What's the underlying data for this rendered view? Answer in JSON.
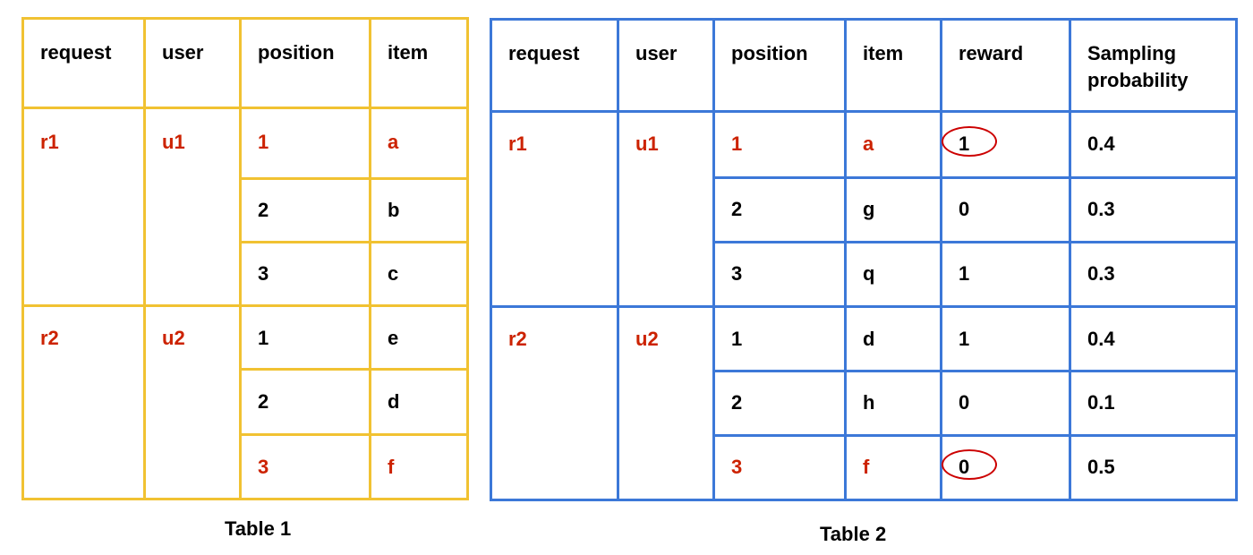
{
  "table1": {
    "caption": "Table 1",
    "border_color": "#f1c232",
    "headers": [
      "request",
      "user",
      "position",
      "item"
    ],
    "groups": [
      {
        "request": "r1",
        "user": "u1",
        "rows": [
          {
            "position": "1",
            "item": "a",
            "highlight": true
          },
          {
            "position": "2",
            "item": "b",
            "highlight": false
          },
          {
            "position": "3",
            "item": "c",
            "highlight": false
          }
        ]
      },
      {
        "request": "r2",
        "user": "u2",
        "rows": [
          {
            "position": "1",
            "item": "e",
            "highlight": false
          },
          {
            "position": "2",
            "item": "d",
            "highlight": false
          },
          {
            "position": "3",
            "item": "f",
            "highlight": true
          }
        ]
      }
    ]
  },
  "table2": {
    "caption": "Table 2",
    "border_color": "#3c78d8",
    "headers": [
      "request",
      "user",
      "position",
      "item",
      "reward",
      "Sampling probability"
    ],
    "groups": [
      {
        "request": "r1",
        "user": "u1",
        "rows": [
          {
            "position": "1",
            "item": "a",
            "reward": "1",
            "probability": "0.4",
            "highlight": true,
            "reward_circled": true
          },
          {
            "position": "2",
            "item": "g",
            "reward": "0",
            "probability": "0.3",
            "highlight": false,
            "reward_circled": false
          },
          {
            "position": "3",
            "item": "q",
            "reward": "1",
            "probability": "0.3",
            "highlight": false,
            "reward_circled": false
          }
        ]
      },
      {
        "request": "r2",
        "user": "u2",
        "rows": [
          {
            "position": "1",
            "item": "d",
            "reward": "1",
            "probability": "0.4",
            "highlight": false,
            "reward_circled": false
          },
          {
            "position": "2",
            "item": "h",
            "reward": "0",
            "probability": "0.1",
            "highlight": false,
            "reward_circled": false
          },
          {
            "position": "3",
            "item": "f",
            "reward": "0",
            "probability": "0.5",
            "highlight": true,
            "reward_circled": true
          }
        ]
      }
    ]
  },
  "colors": {
    "highlight_text": "#cc2200",
    "circle_mark": "#cc0000"
  }
}
